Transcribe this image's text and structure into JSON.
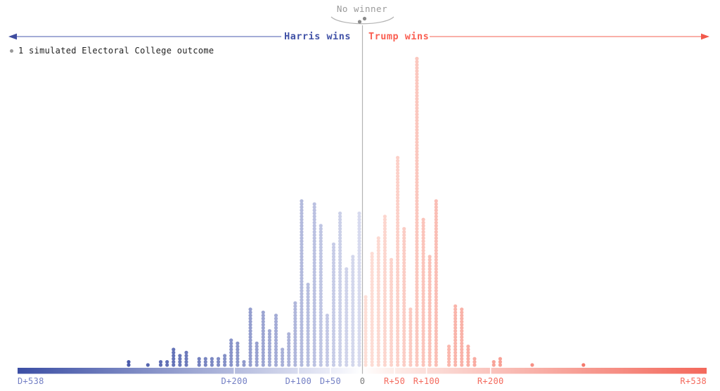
{
  "annotations": {
    "no_winner_label": "No winner",
    "harris_label": "Harris wins",
    "trump_label": "Trump wins",
    "legend_label": "1 simulated Electoral College outcome"
  },
  "colors": {
    "harris_dark": "#3b4ea4",
    "harris_light": "#d9dcef",
    "harris_text": "#4152a7",
    "harris_axis_label": "#737fc4",
    "trump_full": "#f3685b",
    "trump_light": "#fde0d9",
    "trump_text": "#fa5f52",
    "trump_axis_label": "#f4695c",
    "neutral_text": "#9a9a9a",
    "zero_label": "#7a7a7a",
    "line_gray": "#b3b3b3",
    "legend_dot": "#999999",
    "legend_text": "#1f1f1f",
    "arrow_line_blue": "#8590c8",
    "arrow_head_blue": "#3f4da0",
    "arrow_line_red": "#f7968c",
    "arrow_head_red": "#f2594b"
  },
  "axis": {
    "tick_labels": [
      "D+538",
      "D+200",
      "D+100",
      "D+50",
      "0",
      "R+50",
      "R+100",
      "R+200",
      "R+538"
    ],
    "tick_evs": [
      -538,
      -200,
      -100,
      -50,
      0,
      50,
      100,
      200,
      538
    ],
    "white_tick_evs": [
      -200,
      -100,
      -50,
      50,
      100,
      200
    ]
  },
  "chart_data": {
    "type": "dot-histogram",
    "description": "Each dot = 1 simulated Electoral College outcome, stacked in 10-electoral-vote margin buckets from D+538 to R+538",
    "bucket_size_ev": 10,
    "x_axis_min_label": "D+538",
    "x_axis_max_label": "R+538",
    "no_winner_count": 2,
    "series": [
      {
        "name": "Harris wins",
        "margin_prefix": "D",
        "buckets": [
          [
            5,
            50
          ],
          [
            15,
            36
          ],
          [
            25,
            32
          ],
          [
            35,
            50
          ],
          [
            45,
            40
          ],
          [
            55,
            17
          ],
          [
            65,
            46
          ],
          [
            75,
            53
          ],
          [
            85,
            27
          ],
          [
            95,
            54
          ],
          [
            105,
            21
          ],
          [
            115,
            11
          ],
          [
            125,
            6
          ],
          [
            135,
            17
          ],
          [
            145,
            12
          ],
          [
            155,
            18
          ],
          [
            165,
            8
          ],
          [
            175,
            19
          ],
          [
            185,
            2
          ],
          [
            195,
            8
          ],
          [
            205,
            9
          ],
          [
            215,
            4
          ],
          [
            225,
            3
          ],
          [
            235,
            3
          ],
          [
            245,
            3
          ],
          [
            255,
            3
          ],
          [
            275,
            5
          ],
          [
            285,
            4
          ],
          [
            295,
            6
          ],
          [
            305,
            2
          ],
          [
            315,
            2
          ],
          [
            335,
            1
          ],
          [
            365,
            2
          ]
        ]
      },
      {
        "name": "Trump wins",
        "margin_prefix": "R",
        "buckets": [
          [
            5,
            23
          ],
          [
            15,
            37
          ],
          [
            25,
            42
          ],
          [
            35,
            49
          ],
          [
            45,
            35
          ],
          [
            55,
            68
          ],
          [
            65,
            45
          ],
          [
            75,
            19
          ],
          [
            85,
            100
          ],
          [
            95,
            48
          ],
          [
            105,
            36
          ],
          [
            115,
            54
          ],
          [
            135,
            7
          ],
          [
            145,
            20
          ],
          [
            155,
            19
          ],
          [
            165,
            7
          ],
          [
            175,
            3
          ],
          [
            205,
            2
          ],
          [
            215,
            3
          ],
          [
            265,
            1
          ],
          [
            345,
            1
          ]
        ]
      }
    ]
  }
}
